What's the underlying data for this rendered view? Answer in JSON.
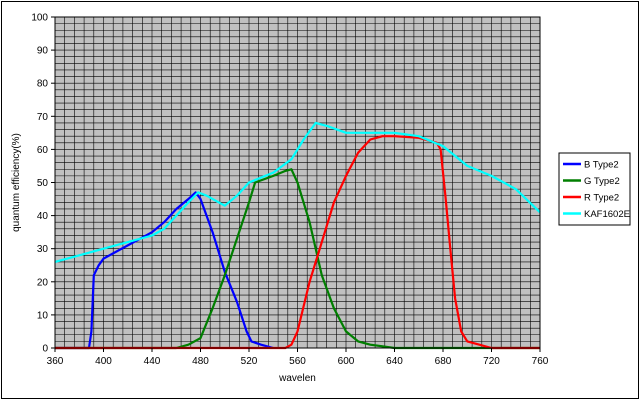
{
  "chart_data": {
    "type": "line",
    "xlabel": "wavelen",
    "ylabel": "quantum efficiency(%)",
    "xlim": [
      360,
      760
    ],
    "ylim": [
      0,
      100
    ],
    "xticks": [
      360,
      400,
      440,
      480,
      520,
      560,
      600,
      640,
      680,
      720,
      760
    ],
    "yticks": [
      0,
      10,
      20,
      30,
      40,
      50,
      60,
      70,
      80,
      90,
      100
    ],
    "x_minor_step": 8,
    "y_minor_step": 2,
    "grid": true,
    "legend_position": "right",
    "plot_background": "#c0c0c0",
    "series": [
      {
        "name": "B Type2",
        "color": "#0000ff",
        "points": [
          [
            360,
            0
          ],
          [
            388,
            0
          ],
          [
            390,
            5
          ],
          [
            392,
            22
          ],
          [
            396,
            25
          ],
          [
            400,
            27
          ],
          [
            410,
            29
          ],
          [
            420,
            31
          ],
          [
            430,
            33
          ],
          [
            440,
            35
          ],
          [
            450,
            38
          ],
          [
            460,
            42
          ],
          [
            470,
            45
          ],
          [
            476,
            47
          ],
          [
            480,
            45
          ],
          [
            490,
            35
          ],
          [
            500,
            23
          ],
          [
            510,
            14
          ],
          [
            518,
            5
          ],
          [
            522,
            2
          ],
          [
            530,
            1
          ],
          [
            540,
            0
          ]
        ]
      },
      {
        "name": "G Type2",
        "color": "#007f00",
        "points": [
          [
            360,
            0
          ],
          [
            460,
            0
          ],
          [
            470,
            1
          ],
          [
            480,
            3
          ],
          [
            490,
            12
          ],
          [
            500,
            22
          ],
          [
            510,
            33
          ],
          [
            520,
            44
          ],
          [
            525,
            50
          ],
          [
            540,
            52
          ],
          [
            550,
            53.5
          ],
          [
            555,
            54
          ],
          [
            560,
            50
          ],
          [
            570,
            38
          ],
          [
            580,
            22
          ],
          [
            590,
            12
          ],
          [
            600,
            5
          ],
          [
            610,
            2
          ],
          [
            620,
            1
          ],
          [
            640,
            0
          ],
          [
            760,
            0
          ]
        ]
      },
      {
        "name": "R Type2",
        "color": "#ff0000",
        "points": [
          [
            360,
            0
          ],
          [
            550,
            0
          ],
          [
            555,
            1
          ],
          [
            560,
            5
          ],
          [
            570,
            20
          ],
          [
            580,
            32
          ],
          [
            590,
            44
          ],
          [
            600,
            52
          ],
          [
            610,
            59
          ],
          [
            620,
            63
          ],
          [
            630,
            64
          ],
          [
            640,
            64
          ],
          [
            660,
            63.5
          ],
          [
            675,
            62
          ],
          [
            678,
            60
          ],
          [
            682,
            46
          ],
          [
            686,
            30
          ],
          [
            690,
            15
          ],
          [
            695,
            5
          ],
          [
            700,
            2
          ],
          [
            710,
            1
          ],
          [
            720,
            0
          ],
          [
            760,
            0
          ]
        ]
      },
      {
        "name": "KAF1602E",
        "color": "#00ffff",
        "points": [
          [
            360,
            26
          ],
          [
            380,
            28
          ],
          [
            400,
            30
          ],
          [
            420,
            32
          ],
          [
            440,
            34
          ],
          [
            450,
            36
          ],
          [
            460,
            40
          ],
          [
            470,
            44
          ],
          [
            478,
            47
          ],
          [
            485,
            46
          ],
          [
            500,
            43
          ],
          [
            510,
            46
          ],
          [
            520,
            50
          ],
          [
            540,
            53
          ],
          [
            555,
            57
          ],
          [
            565,
            63
          ],
          [
            575,
            68
          ],
          [
            585,
            67
          ],
          [
            600,
            65
          ],
          [
            620,
            65
          ],
          [
            640,
            65
          ],
          [
            660,
            64
          ],
          [
            680,
            61
          ],
          [
            700,
            55
          ],
          [
            720,
            52
          ],
          [
            740,
            48
          ],
          [
            760,
            41
          ]
        ]
      }
    ]
  }
}
